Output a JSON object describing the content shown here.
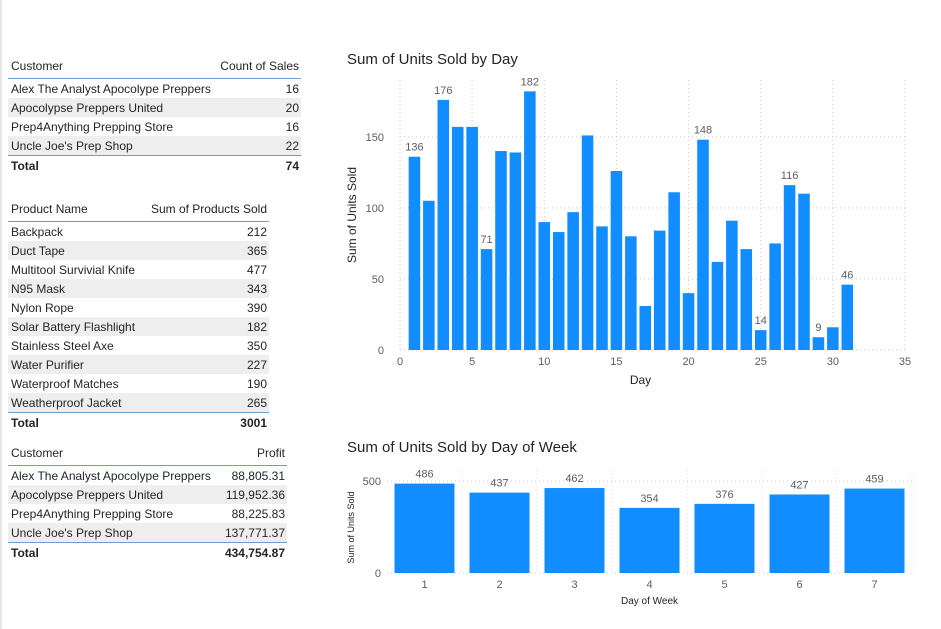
{
  "customer_sales_table": {
    "headers": [
      "Customer",
      "Count of Sales"
    ],
    "rows": [
      [
        "Alex The Analyst Apocolype Preppers",
        "16"
      ],
      [
        "Apocolypse Preppers United",
        "20"
      ],
      [
        "Prep4Anything Prepping Store",
        "16"
      ],
      [
        "Uncle Joe's Prep Shop",
        "22"
      ]
    ],
    "total": [
      "Total",
      "74"
    ]
  },
  "product_table": {
    "headers": [
      "Product Name",
      "Sum of Products Sold"
    ],
    "rows": [
      [
        "Backpack",
        "212"
      ],
      [
        "Duct Tape",
        "365"
      ],
      [
        "Multitool Survivial Knife",
        "477"
      ],
      [
        "N95 Mask",
        "343"
      ],
      [
        "Nylon Rope",
        "390"
      ],
      [
        "Solar Battery Flashlight",
        "182"
      ],
      [
        "Stainless Steel Axe",
        "350"
      ],
      [
        "Water Purifier",
        "227"
      ],
      [
        "Waterproof Matches",
        "190"
      ],
      [
        "Weatherproof Jacket",
        "265"
      ]
    ],
    "total": [
      "Total",
      "3001"
    ]
  },
  "profit_table": {
    "headers": [
      "Customer",
      "Profit"
    ],
    "rows": [
      [
        "Alex The Analyst Apocolype Preppers",
        "88,805.31"
      ],
      [
        "Apocolypse Preppers United",
        "119,952.36"
      ],
      [
        "Prep4Anything Prepping Store",
        "88,225.83"
      ],
      [
        "Uncle Joe's Prep Shop",
        "137,771.37"
      ]
    ],
    "total": [
      "Total",
      "434,754.87"
    ]
  },
  "chart_data": [
    {
      "type": "bar",
      "title": "Sum of Units Sold by Day",
      "xlabel": "Day",
      "ylabel": "Sum of Units Sold",
      "x": [
        1,
        2,
        3,
        4,
        5,
        6,
        7,
        8,
        9,
        10,
        11,
        12,
        13,
        14,
        15,
        16,
        17,
        18,
        19,
        20,
        21,
        22,
        23,
        24,
        25,
        26,
        27,
        28,
        29,
        30,
        31
      ],
      "values": [
        136,
        105,
        176,
        157,
        157,
        71,
        140,
        139,
        182,
        90,
        83,
        97,
        151,
        87,
        126,
        80,
        31,
        84,
        111,
        40,
        148,
        62,
        91,
        71,
        14,
        75,
        116,
        110,
        9,
        16,
        46
      ],
      "labeled_days": [
        1,
        3,
        6,
        9,
        21,
        25,
        27,
        29,
        31
      ],
      "xlim": [
        0,
        35
      ],
      "ylim": [
        0,
        190
      ],
      "xticks": [
        0,
        5,
        10,
        15,
        20,
        25,
        30,
        35
      ],
      "yticks": [
        0,
        50,
        100,
        150
      ],
      "grid": true,
      "color": "#118dff"
    },
    {
      "type": "bar",
      "title": "Sum of Units Sold by Day of Week",
      "xlabel": "Day of Week",
      "ylabel": "Sum of Units Sold",
      "categories": [
        "1",
        "2",
        "3",
        "4",
        "5",
        "6",
        "7"
      ],
      "values": [
        486,
        437,
        462,
        354,
        376,
        427,
        459
      ],
      "ylim": [
        0,
        560
      ],
      "yticks": [
        0,
        500
      ],
      "grid": true,
      "color": "#118dff"
    }
  ]
}
